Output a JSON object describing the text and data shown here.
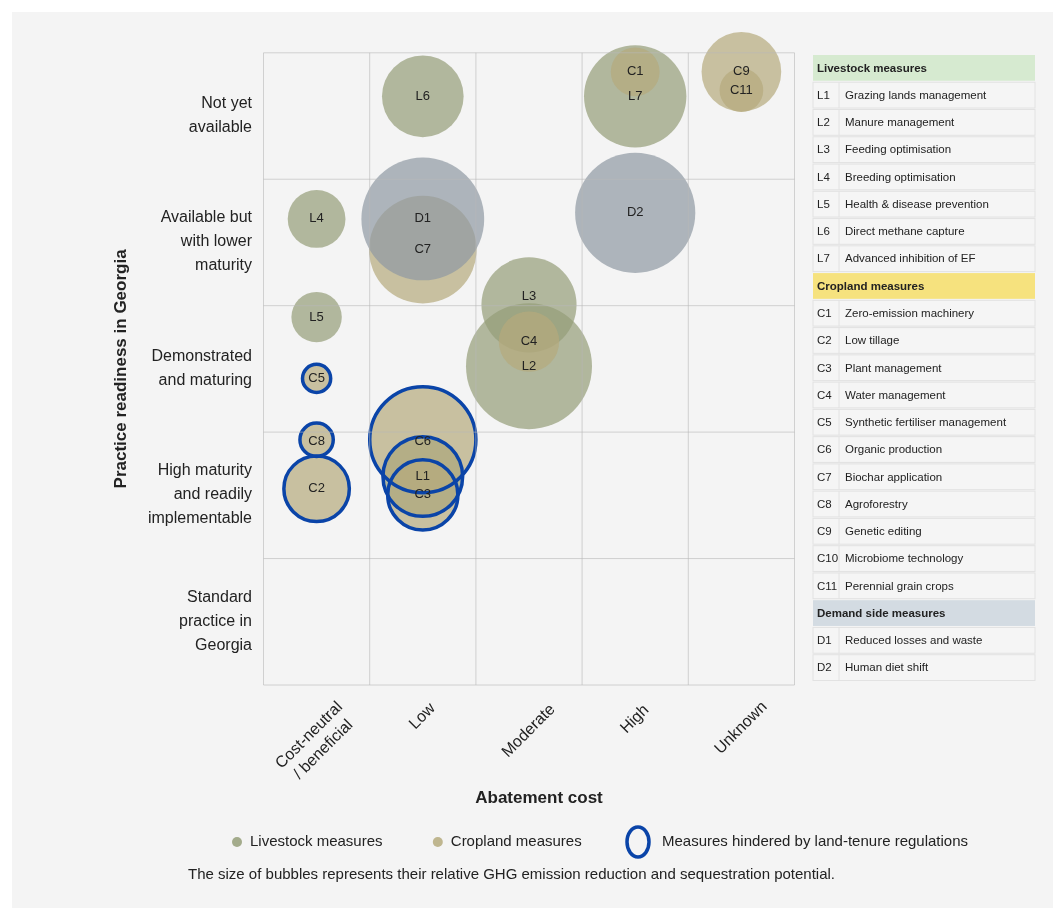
{
  "chart_data": [
    {
      "type": "bubble",
      "xlabel": "Abatement cost",
      "ylabel": "Practice readiness in Georgia",
      "categories": [
        "Cost-neutral / beneficial",
        "Low",
        "Moderate",
        "High",
        "Unknown"
      ],
      "y_categories": [
        "Not yet available",
        "Available but with lower maturity",
        "Demonstrated and maturing",
        "High maturity and readily implementable",
        "Standard practice in Georgia"
      ],
      "grid": true,
      "legend": "bottom",
      "series": [
        {
          "name": "Livestock measures",
          "color": "#949d78",
          "x": [
            "Low",
            "Moderate",
            "Moderate",
            "Cost-neutral / beneficial",
            "Cost-neutral / beneficial",
            "Low",
            "High"
          ],
          "values": [
            0.34,
            0.52,
            0.62,
            0.76,
            0.6,
            0.96,
            0.96
          ],
          "sizes": [
            0.4,
            1,
            0.57,
            0.21,
            0.16,
            0.42,
            0.66
          ],
          "value_labels": [
            "L1",
            "L2",
            "L3",
            "L4",
            "L5",
            "L6",
            "L7"
          ]
        },
        {
          "name": "Cropland measures",
          "color": "#b5aa7c",
          "x": [
            "High",
            "Cost-neutral / beneficial",
            "Low",
            "Moderate",
            "Cost-neutral / beneficial",
            "Low",
            "Low",
            "Cost-neutral / beneficial",
            "Unknown",
            "Unknown"
          ],
          "values": [
            1,
            0.32,
            0.31,
            0.56,
            0.5,
            0.4,
            0.71,
            0.4,
            1,
            0.97
          ],
          "sizes": [
            0.15,
            0.27,
            0.31,
            0.23,
            0.05,
            0.71,
            0.73,
            0.07,
            0.4,
            0.12
          ],
          "value_labels": [
            "C1",
            "C2",
            "C3",
            "C4",
            "C5",
            "C6",
            "C7",
            "C8",
            "C9",
            "C11"
          ]
        },
        {
          "color": "#8e98a3",
          "x": [
            "Low",
            "High"
          ],
          "values": [
            0.76,
            0.77
          ],
          "sizes": [
            0.95,
            0.91
          ],
          "value_labels": [
            "D1",
            "D2"
          ]
        },
        {
          "name": "Measures hindered by land-tenure regulations",
          "color": "#0a44a8",
          "marker": "circle",
          "x": [
            "Cost-neutral / beneficial",
            "Cost-neutral / beneficial",
            "Cost-neutral / beneficial",
            "Low",
            "Low",
            "Low"
          ],
          "values": [
            0.5,
            0.4,
            0.32,
            0.4,
            0.34,
            0.31
          ],
          "sizes": [
            0.05,
            0.07,
            0.27,
            0.71,
            0.4,
            0.31
          ]
        }
      ],
      "annotations": [
        "The size of bubbles represents their relative GHG emission reduction and sequestration potential."
      ]
    },
    {
      "type": "other",
      "title": "Livestock measures",
      "categories": [
        "L1",
        "L2",
        "L3",
        "L4",
        "L5",
        "L6",
        "L7"
      ],
      "annotations": [
        "Grazing lands management",
        "Manure management",
        "Feeding optimisation",
        "Breeding optimisation",
        "Health & disease prevention",
        "Direct methane capture",
        "Advanced inhibition of EF"
      ]
    },
    {
      "type": "other",
      "title": "Cropland measures",
      "categories": [
        "C1",
        "C2",
        "C3",
        "C4",
        "C5",
        "C6",
        "C7",
        "C8",
        "C9",
        "C10",
        "C11"
      ],
      "annotations": [
        "Zero-emission machinery",
        "Low tillage",
        "Plant management",
        "Water management",
        "Synthetic fertiliser management",
        "Organic production",
        "Biochar application",
        "Agroforestry",
        "Genetic editing",
        "Microbiome technology",
        "Perennial grain crops"
      ]
    },
    {
      "type": "other",
      "title": "Demand side measures",
      "categories": [
        "D1",
        "D2"
      ],
      "annotations": [
        "Reduced losses and waste",
        "Human diet shift"
      ]
    }
  ]
}
